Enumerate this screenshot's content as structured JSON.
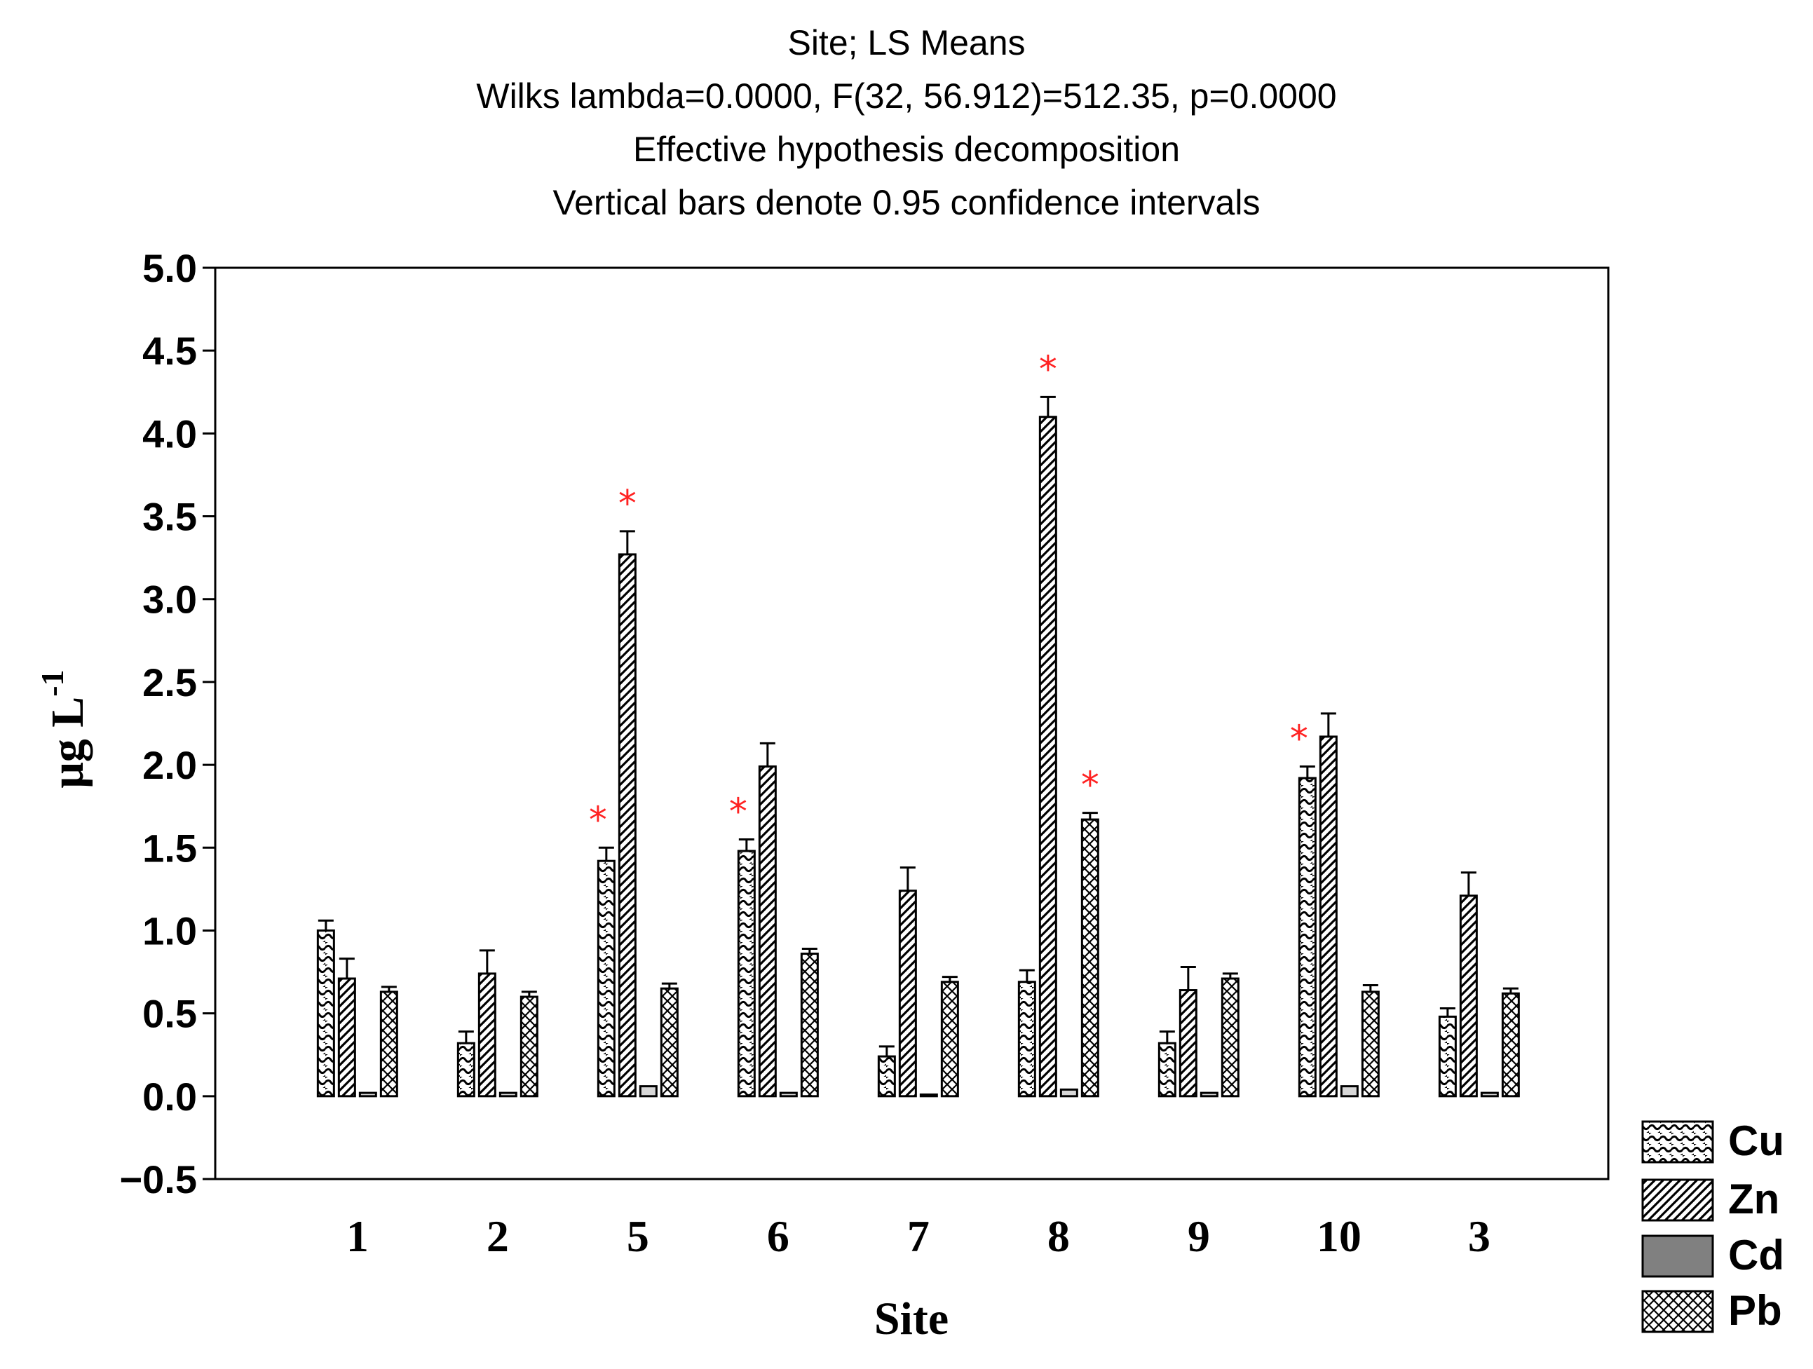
{
  "chart_data": {
    "type": "bar",
    "title_lines": [
      "Site; LS Means",
      "Wilks lambda=0.0000, F(32, 56.912)=512.35, p=0.0000",
      "Effective hypothesis decomposition",
      "Vertical bars denote 0.95 confidence intervals"
    ],
    "xlabel": "Site",
    "ylabel_main": "μg L",
    "ylabel_sup": "-1",
    "categories": [
      "1",
      "2",
      "5",
      "6",
      "7",
      "8",
      "9",
      "10",
      "3"
    ],
    "ylim": [
      -0.5,
      5.0
    ],
    "yticks": [
      "5.0",
      "4.5",
      "4.0",
      "3.5",
      "3.0",
      "2.5",
      "2.0",
      "1.5",
      "1.0",
      "0.5",
      "0.0",
      "−0.5"
    ],
    "ytick_values": [
      5.0,
      4.5,
      4.0,
      3.5,
      3.0,
      2.5,
      2.0,
      1.5,
      1.0,
      0.5,
      0.0,
      -0.5
    ],
    "grid": false,
    "legend_position": "bottom-right",
    "significance_marker": "*",
    "significance_color": "#ff2222",
    "series": [
      {
        "name": "Cu",
        "pattern": "wave-hatch",
        "values": [
          1.0,
          0.32,
          1.42,
          1.48,
          0.24,
          0.69,
          0.32,
          1.92,
          0.48
        ],
        "ci_upper": [
          1.06,
          0.39,
          1.5,
          1.55,
          0.3,
          0.76,
          0.39,
          1.99,
          0.53
        ],
        "significant": [
          false,
          false,
          true,
          true,
          false,
          false,
          false,
          true,
          false
        ]
      },
      {
        "name": "Zn",
        "pattern": "diagonal-hatch",
        "values": [
          0.71,
          0.74,
          3.27,
          1.99,
          1.24,
          4.1,
          0.64,
          2.17,
          1.21
        ],
        "ci_upper": [
          0.83,
          0.88,
          3.41,
          2.13,
          1.38,
          4.22,
          0.78,
          2.31,
          1.35
        ],
        "significant": [
          false,
          false,
          true,
          false,
          false,
          true,
          false,
          false,
          false
        ]
      },
      {
        "name": "Cd",
        "pattern": "solid-gray",
        "values": [
          0.02,
          0.02,
          0.06,
          0.02,
          0.01,
          0.04,
          0.02,
          0.06,
          0.02
        ],
        "ci_upper": [
          0.02,
          0.02,
          0.06,
          0.02,
          0.01,
          0.04,
          0.02,
          0.06,
          0.02
        ],
        "significant": [
          false,
          false,
          false,
          false,
          false,
          false,
          false,
          false,
          false
        ]
      },
      {
        "name": "Pb",
        "pattern": "cross-hatch",
        "values": [
          0.63,
          0.6,
          0.65,
          0.86,
          0.69,
          1.67,
          0.71,
          0.63,
          0.62
        ],
        "ci_upper": [
          0.66,
          0.63,
          0.68,
          0.89,
          0.72,
          1.71,
          0.74,
          0.67,
          0.65
        ],
        "significant": [
          false,
          false,
          false,
          false,
          false,
          true,
          false,
          false,
          false
        ]
      }
    ]
  }
}
